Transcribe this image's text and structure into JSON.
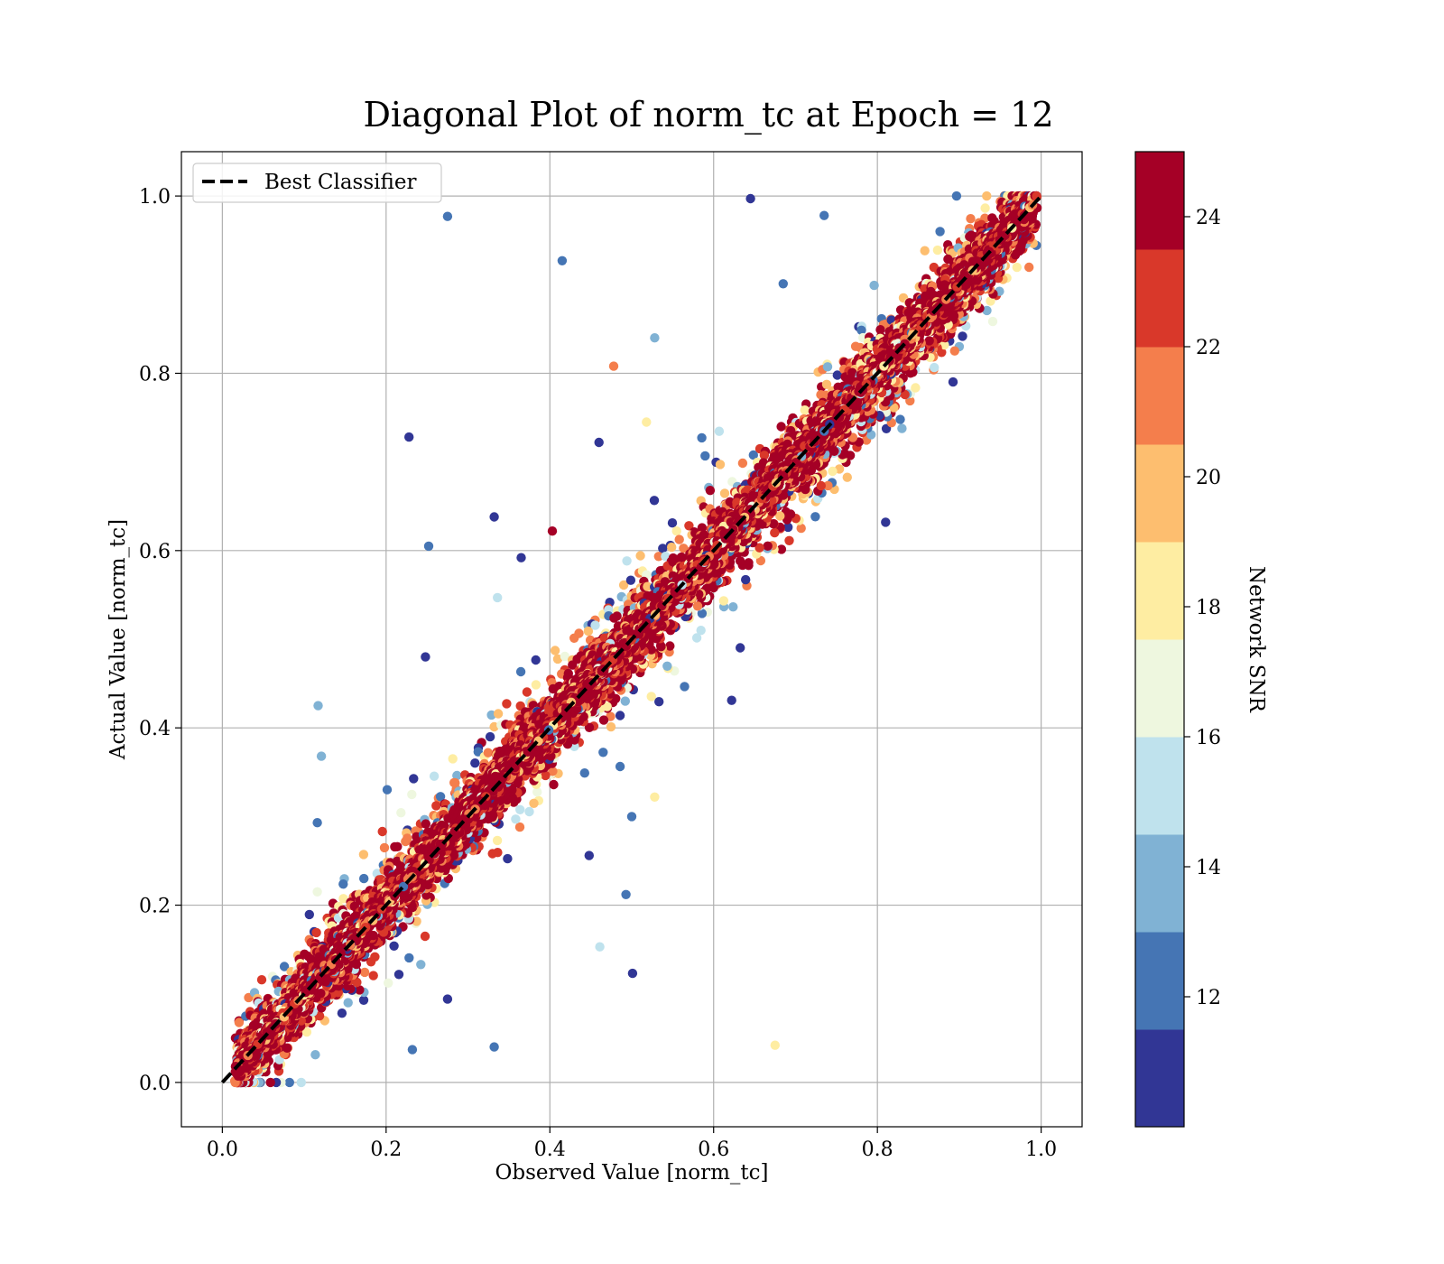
{
  "chart_data": {
    "type": "scatter",
    "title": "Diagonal Plot of norm_tc at Epoch = 12",
    "xlabel": "Observed Value [norm_tc]",
    "ylabel": "Actual Value [norm_tc]",
    "xlim": [
      -0.05,
      1.05
    ],
    "ylim": [
      -0.05,
      1.05
    ],
    "xticks": [
      "0.0",
      "0.2",
      "0.4",
      "0.6",
      "0.8",
      "1.0"
    ],
    "yticks": [
      "0.0",
      "0.2",
      "0.4",
      "0.6",
      "0.8",
      "1.0"
    ],
    "xtick_values": [
      0.0,
      0.2,
      0.4,
      0.6,
      0.8,
      1.0
    ],
    "ytick_values": [
      0.0,
      0.2,
      0.4,
      0.6,
      0.8,
      1.0
    ],
    "grid": true,
    "legend": {
      "placement": "top-left",
      "entries": [
        {
          "label": "Best Classifier",
          "style": "dashed",
          "color": "#000000"
        }
      ]
    },
    "reference_line": {
      "name": "Best Classifier",
      "x": [
        0.0,
        1.0
      ],
      "y": [
        0.0,
        1.0
      ]
    },
    "colorbar": {
      "label": "Network SNR",
      "range": [
        10,
        25
      ],
      "ticks": [
        "12",
        "14",
        "16",
        "18",
        "20",
        "22",
        "24"
      ],
      "tick_values": [
        12,
        14,
        16,
        18,
        20,
        22,
        24
      ],
      "bins": [
        {
          "from": 10.0,
          "to": 11.5,
          "color": "#313695"
        },
        {
          "from": 11.5,
          "to": 13.0,
          "color": "#4575b4"
        },
        {
          "from": 13.0,
          "to": 14.5,
          "color": "#80b2d4"
        },
        {
          "from": 14.5,
          "to": 16.0,
          "color": "#bfe2ed"
        },
        {
          "from": 16.0,
          "to": 17.5,
          "color": "#eef7df"
        },
        {
          "from": 17.5,
          "to": 19.0,
          "color": "#feeda2"
        },
        {
          "from": 19.0,
          "to": 20.5,
          "color": "#fdbe6f"
        },
        {
          "from": 20.5,
          "to": 22.0,
          "color": "#f47e4c"
        },
        {
          "from": 22.0,
          "to": 23.5,
          "color": "#d9382a"
        },
        {
          "from": 23.5,
          "to": 25.0,
          "color": "#a50026"
        }
      ]
    },
    "outliers": [
      {
        "x": 0.275,
        "y": 0.977,
        "snr": 12.5
      },
      {
        "x": 0.645,
        "y": 0.997,
        "snr": 10.5
      },
      {
        "x": 0.735,
        "y": 0.978,
        "snr": 12.5
      },
      {
        "x": 0.415,
        "y": 0.927,
        "snr": 12.5
      },
      {
        "x": 0.685,
        "y": 0.901,
        "snr": 12.5
      },
      {
        "x": 0.528,
        "y": 0.84,
        "snr": 14.0
      },
      {
        "x": 0.478,
        "y": 0.808,
        "snr": 21.5
      },
      {
        "x": 0.228,
        "y": 0.728,
        "snr": 10.5
      },
      {
        "x": 0.46,
        "y": 0.722,
        "snr": 10.5
      },
      {
        "x": 0.518,
        "y": 0.745,
        "snr": 18.5
      },
      {
        "x": 0.332,
        "y": 0.638,
        "snr": 10.5
      },
      {
        "x": 0.252,
        "y": 0.605,
        "snr": 12.5
      },
      {
        "x": 0.403,
        "y": 0.622,
        "snr": 24.5
      },
      {
        "x": 0.365,
        "y": 0.592,
        "snr": 10.5
      },
      {
        "x": 0.248,
        "y": 0.48,
        "snr": 10.5
      },
      {
        "x": 0.336,
        "y": 0.547,
        "snr": 15.0
      },
      {
        "x": 0.117,
        "y": 0.425,
        "snr": 14.0
      },
      {
        "x": 0.121,
        "y": 0.368,
        "snr": 14.0
      },
      {
        "x": 0.116,
        "y": 0.293,
        "snr": 12.5
      },
      {
        "x": 0.493,
        "y": 0.212,
        "snr": 12.5
      },
      {
        "x": 0.5,
        "y": 0.3,
        "snr": 12.5
      },
      {
        "x": 0.528,
        "y": 0.322,
        "snr": 18.5
      },
      {
        "x": 0.461,
        "y": 0.153,
        "snr": 15.0
      },
      {
        "x": 0.501,
        "y": 0.123,
        "snr": 10.5
      },
      {
        "x": 0.332,
        "y": 0.04,
        "snr": 12.5
      },
      {
        "x": 0.232,
        "y": 0.037,
        "snr": 12.5
      },
      {
        "x": 0.675,
        "y": 0.042,
        "snr": 18.5
      },
      {
        "x": 0.622,
        "y": 0.431,
        "snr": 10.5
      },
      {
        "x": 0.81,
        "y": 0.632,
        "snr": 10.5
      },
      {
        "x": 0.448,
        "y": 0.256,
        "snr": 10.5
      },
      {
        "x": 0.275,
        "y": 0.094,
        "snr": 10.5
      }
    ]
  }
}
